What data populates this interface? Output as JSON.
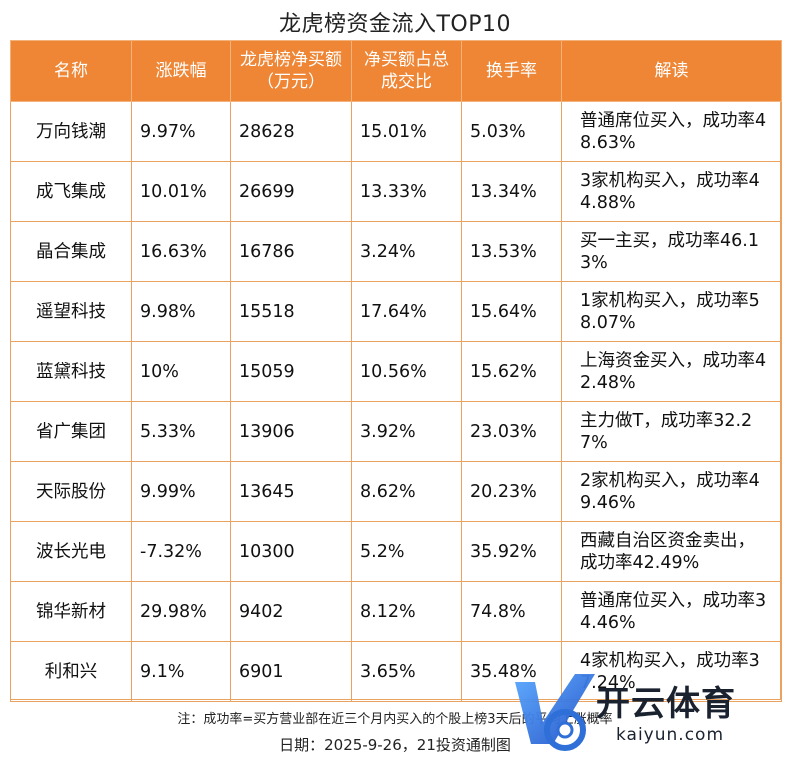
{
  "title": "龙虎榜资金流入TOP10",
  "table": {
    "headers": [
      "名称",
      "涨跌幅",
      "龙虎榜净买额（万元）",
      "净买额占总成交比",
      "换手率",
      "解读"
    ],
    "rows": [
      [
        "万向钱潮",
        "9.97%",
        "28628",
        "15.01%",
        "5.03%",
        "普通席位买入，成功率48.63%"
      ],
      [
        "成飞集成",
        "10.01%",
        "26699",
        "13.33%",
        "13.34%",
        "3家机构买入，成功率44.88%"
      ],
      [
        "晶合集成",
        "16.63%",
        "16786",
        "3.24%",
        "13.53%",
        "买一主买，成功率46.13%"
      ],
      [
        "遥望科技",
        "9.98%",
        "15518",
        "17.64%",
        "15.64%",
        "1家机构买入，成功率58.07%"
      ],
      [
        "蓝黛科技",
        "10%",
        "15059",
        "10.56%",
        "15.62%",
        "上海资金买入，成功率42.48%"
      ],
      [
        "省广集团",
        "5.33%",
        "13906",
        "3.92%",
        "23.03%",
        "主力做T，成功率32.27%"
      ],
      [
        "天际股份",
        "9.99%",
        "13645",
        "8.62%",
        "20.23%",
        "2家机构买入，成功率49.46%"
      ],
      [
        "波长光电",
        "-7.32%",
        "10300",
        "5.2%",
        "35.92%",
        "西藏自治区资金卖出，成功率42.49%"
      ],
      [
        "锦华新材",
        "29.98%",
        "9402",
        "8.12%",
        "74.8%",
        "普通席位买入，成功率34.46%"
      ],
      [
        "利和兴",
        "9.1%",
        "6901",
        "3.65%",
        "35.48%",
        "4家机构买入，成功率37.24%"
      ]
    ]
  },
  "note": "注：成功率=买方营业部在近三个月内买入的个股上榜3天后的平均上涨概率",
  "date": "日期：2025-9-26，21投资通制图",
  "watermark": {
    "cn": "开云体育",
    "en": "kaiyun.com"
  },
  "colors": {
    "header_bg": "#ee8636",
    "border": "#e9a25f",
    "watermark_blue": "#2f6fd8"
  }
}
